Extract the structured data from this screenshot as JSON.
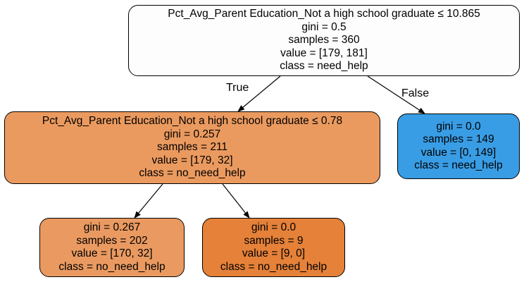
{
  "colors": {
    "root_fill": "#fdfdfe",
    "left_fill": "#eb9a5f",
    "right_fill": "#399de5",
    "leaf_a_fill": "#ea9a61",
    "leaf_b_fill": "#e58139",
    "edge": "#000000"
  },
  "edges": {
    "true_label": "True",
    "false_label": "False"
  },
  "nodes": {
    "root": {
      "condition": "Pct_Avg_Parent Education_Not a high school graduate ≤ 10.865",
      "gini": "gini = 0.5",
      "samples": "samples = 360",
      "value": "value = [179, 181]",
      "class": "class = need_help"
    },
    "left": {
      "condition": "Pct_Avg_Parent Education_Not a high school graduate ≤ 0.78",
      "gini": "gini = 0.257",
      "samples": "samples = 211",
      "value": "value = [179, 32]",
      "class": "class = no_need_help"
    },
    "right": {
      "gini": "gini = 0.0",
      "samples": "samples = 149",
      "value": "value = [0, 149]",
      "class": "class = need_help"
    },
    "leaf_a": {
      "gini": "gini = 0.267",
      "samples": "samples = 202",
      "value": "value = [170, 32]",
      "class": "class = no_need_help"
    },
    "leaf_b": {
      "gini": "gini = 0.0",
      "samples": "samples = 9",
      "value": "value = [9, 0]",
      "class": "class = no_need_help"
    }
  }
}
